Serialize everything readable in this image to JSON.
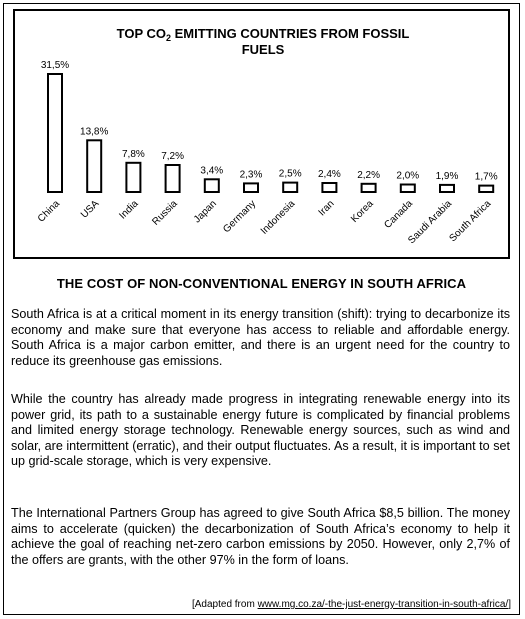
{
  "chart_data": {
    "type": "bar",
    "title_parts": {
      "prefix": "TOP CO",
      "subscript": "2",
      "suffix_line1": " EMITTING COUNTRIES FROM FOSSIL",
      "line2": "FUELS"
    },
    "categories": [
      "China",
      "USA",
      "India",
      "Russia",
      "Japan",
      "Germany",
      "Indonesia",
      "Iran",
      "Korea",
      "Canada",
      "Saudi Arabia",
      "South Africa"
    ],
    "values": [
      31.5,
      13.8,
      7.8,
      7.2,
      3.4,
      2.3,
      2.5,
      2.4,
      2.2,
      2.0,
      1.9,
      1.7
    ],
    "value_labels": [
      "31,5%",
      "13,8%",
      "7,8%",
      "7,2%",
      "3,4%",
      "2,3%",
      "2,5%",
      "2,4%",
      "2,2%",
      "2,0%",
      "1,9%",
      "1,7%"
    ],
    "ylim": [
      0,
      31.5
    ],
    "grid": false,
    "bar_style": "outlined"
  },
  "article": {
    "heading": "THE COST OF NON-CONVENTIONAL ENERGY IN SOUTH AFRICA",
    "paragraphs": [
      "South Africa is at a critical moment in its energy transition (shift): trying to decarbonize its economy and make sure that everyone has access to reliable and affordable energy. South Africa is a major carbon emitter, and there is an urgent need for the country to reduce its greenhouse gas emissions.",
      "While the country has already made progress in integrating renewable energy into its power grid, its path to a sustainable energy future is complicated by financial problems and limited energy storage technology. Renewable energy sources, such as wind and solar, are intermittent (erratic), and their output fluctuates. As a result, it is important to set up grid-scale storage, which is very expensive.",
      "The International Partners Group has agreed to give South Africa $8,5 billion. The money aims to accelerate (quicken) the decarbonization of South Africa’s economy to help it achieve the goal of reaching net-zero carbon emissions by 2050. However, only 2,7% of the offers are grants, with the other 97% in the form of loans."
    ],
    "source_prefix": "[Adapted from ",
    "source_link": "www.mg.co.za/-the-just-energy-transition-in-south-africa/",
    "source_suffix": "]"
  }
}
